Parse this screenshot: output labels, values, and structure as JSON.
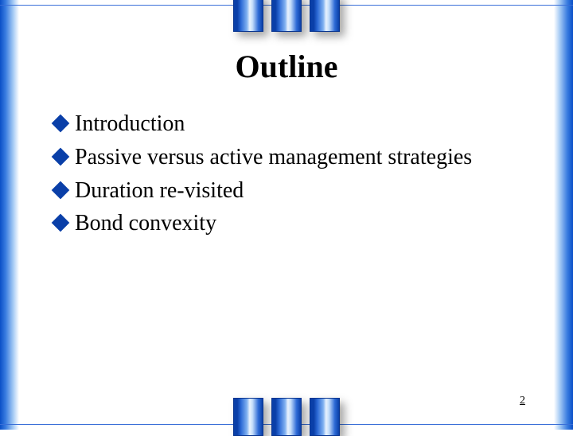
{
  "slide": {
    "title": "Outline",
    "bullets": [
      "Introduction",
      "Passive versus active management strategies",
      "Duration re-visited",
      "Bond convexity"
    ],
    "page_number": "2"
  },
  "style": {
    "bullet_color": "#0a3fa8",
    "title_fontsize": 40,
    "body_fontsize": 28,
    "pagenum_fontsize": 14,
    "gradient_start": "#0a4fc7",
    "gradient_end": "#ffffff",
    "pillar_width": 38,
    "pillar_height": 48,
    "pillar_count": 3
  }
}
